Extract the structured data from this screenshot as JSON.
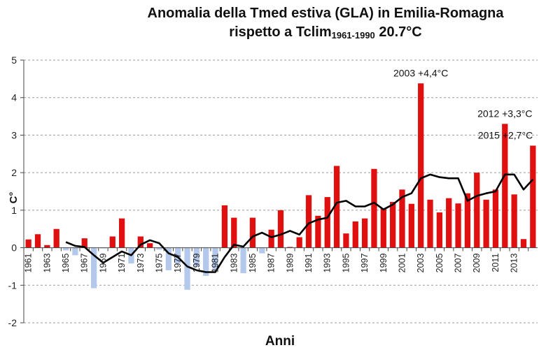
{
  "chart_data": {
    "type": "bar",
    "title_line1": "Anomalia della Tmed  estiva (GLA) in Emilia-Romagna",
    "title_line2_main": "rispetto a Tclim",
    "title_line2_sub": "1961-1990",
    "title_line2_end": " 20.7°C",
    "xlabel": "Anni",
    "ylabel": "C°",
    "ylim": [
      -2,
      5
    ],
    "yticks": [
      "-2",
      "-1",
      "0",
      "1",
      "2",
      "3",
      "4",
      "5"
    ],
    "grid": "horizontal dashed",
    "x": [
      1961,
      1962,
      1963,
      1964,
      1965,
      1966,
      1967,
      1968,
      1969,
      1970,
      1971,
      1972,
      1973,
      1974,
      1975,
      1976,
      1977,
      1978,
      1979,
      1980,
      1981,
      1982,
      1983,
      1984,
      1985,
      1986,
      1987,
      1988,
      1989,
      1990,
      1991,
      1992,
      1993,
      1994,
      1995,
      1996,
      1997,
      1998,
      1999,
      2000,
      2001,
      2002,
      2003,
      2004,
      2005,
      2006,
      2007,
      2008,
      2009,
      2010,
      2011,
      2012,
      2013,
      2014,
      2015
    ],
    "xtick_labels": [
      "1961",
      "1963",
      "1965",
      "1967",
      "1969",
      "1971",
      "1973",
      "1975",
      "1977",
      "1979",
      "1981",
      "1983",
      "1985",
      "1987",
      "1989",
      "1991",
      "1993",
      "1995",
      "1997",
      "1999",
      "2001",
      "2003",
      "2005",
      "2007",
      "2009",
      "2011",
      "2013"
    ],
    "positive_color": "#e01010",
    "negative_color": "#b3c8ea",
    "line_color": "#000000",
    "series": [
      {
        "kind": "bar",
        "values": [
          0.22,
          0.36,
          0.07,
          0.5,
          -0.07,
          -0.2,
          0.25,
          -1.08,
          -0.02,
          0.3,
          0.78,
          -0.42,
          0.3,
          0.12,
          -0.05,
          -0.6,
          -0.42,
          -1.12,
          -0.5,
          -0.75,
          -0.6,
          1.13,
          0.8,
          -0.68,
          0.8,
          -0.15,
          0.48,
          1.0,
          0.02,
          0.28,
          1.4,
          0.85,
          1.35,
          2.18,
          0.38,
          0.7,
          0.78,
          2.1,
          1.05,
          1.22,
          1.55,
          1.17,
          4.38,
          1.28,
          0.94,
          1.32,
          1.18,
          1.45,
          2.0,
          1.28,
          1.55,
          3.3,
          1.42,
          0.23,
          2.72
        ]
      },
      {
        "kind": "line",
        "values": [
          null,
          null,
          null,
          null,
          0.15,
          0.05,
          0.02,
          -0.2,
          -0.4,
          -0.25,
          -0.1,
          -0.2,
          0.08,
          0.2,
          0.12,
          -0.15,
          -0.25,
          -0.5,
          -0.6,
          -0.65,
          -0.65,
          -0.25,
          0.08,
          0.03,
          0.3,
          0.4,
          0.28,
          0.35,
          0.45,
          0.35,
          0.65,
          0.75,
          0.8,
          1.2,
          1.25,
          1.1,
          1.1,
          1.2,
          1.02,
          1.15,
          1.35,
          1.45,
          1.85,
          1.95,
          1.88,
          1.85,
          1.85,
          1.25,
          1.38,
          1.45,
          1.5,
          1.95,
          1.95,
          1.55,
          1.82
        ]
      }
    ],
    "annotations": [
      {
        "text": "2003 +4,4°C",
        "year": 2003,
        "value": 4.38
      },
      {
        "text": "2012 +3,3°C",
        "year": 2012,
        "value": 3.3
      },
      {
        "text": "2015 +2,7°C",
        "year": 2015,
        "value": 2.72
      }
    ]
  }
}
